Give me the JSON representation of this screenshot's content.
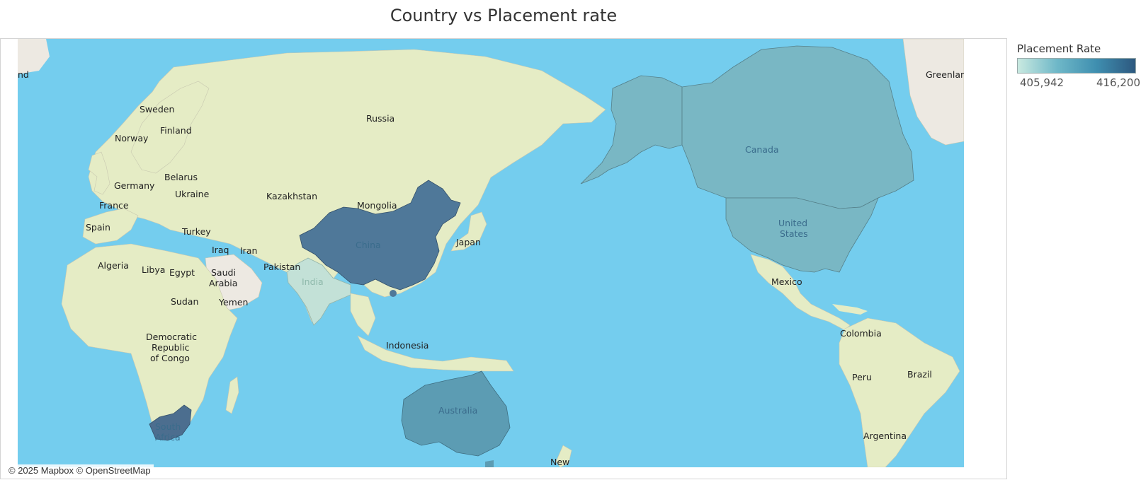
{
  "title": "Country vs Placement rate",
  "attribution": "© 2025 Mapbox © OpenStreetMap",
  "legend": {
    "title": "Placement Rate",
    "min_label": "405,942",
    "max_label": "416,200",
    "gradient_colors": [
      "#c9e9e0",
      "#6fb8c8",
      "#3f8fb0",
      "#2d587f"
    ]
  },
  "colors": {
    "ocean": "#74cdee",
    "land": "#e5ecc5",
    "land_alt": "#ede9e2",
    "china": "#4f7899",
    "south_africa": "#4c6e8f",
    "australia": "#5c9cb3",
    "north_america": "#79b7c4",
    "india": "#c3e1d7"
  },
  "map_labels": {
    "russia": "Russia",
    "sweden": "Sweden",
    "finland": "Finland",
    "norway": "Norway",
    "belarus": "Belarus",
    "germany": "Germany",
    "ukraine": "Ukraine",
    "france": "France",
    "spain": "Spain",
    "turkey": "Turkey",
    "kazakhstan": "Kazakhstan",
    "mongolia": "Mongolia",
    "china": "China",
    "japan": "Japan",
    "iraq": "Iraq",
    "iran": "Iran",
    "pakistan": "Pakistan",
    "india": "India",
    "saudi": "Saudi",
    "arabia": "Arabia",
    "yemen": "Yemen",
    "algeria": "Algeria",
    "libya": "Libya",
    "egypt": "Egypt",
    "sudan": "Sudan",
    "democratic": "Democratic",
    "republic": "Republic",
    "of_congo": "of Congo",
    "indonesia": "Indonesia",
    "australia": "Australia",
    "south": "South",
    "africa": "Africa",
    "new": "New",
    "canada": "Canada",
    "united": "United",
    "states": "States",
    "mexico": "Mexico",
    "colombia": "Colombia",
    "peru": "Peru",
    "brazil": "Brazil",
    "argentina": "Argentina",
    "greenland": "Greenlan",
    "iceland": "nd"
  }
}
